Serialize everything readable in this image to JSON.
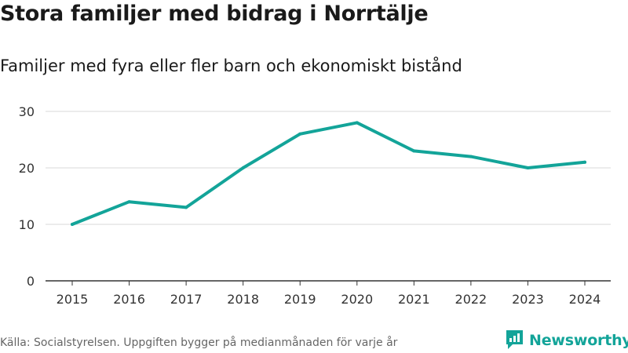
{
  "header": {
    "title": "Stora familjer med bidrag i Norrtälje",
    "subtitle": "Familjer med fyra eller fler barn och ekonomiskt bistånd"
  },
  "footer": {
    "source": "Källa: Socialstyrelsen. Uppgiften bygger på medianmånaden för varje år",
    "brand": "Newsworthy"
  },
  "colors": {
    "line": "#13a499",
    "grid": "#d9d9d9",
    "axis": "#333333",
    "brand": "#13a499"
  },
  "chart_data": {
    "type": "line",
    "title": "Stora familjer med bidrag i Norrtälje",
    "subtitle": "Familjer med fyra eller fler barn och ekonomiskt bistånd",
    "xlabel": "",
    "ylabel": "",
    "categories": [
      "2015",
      "2016",
      "2017",
      "2018",
      "2019",
      "2020",
      "2021",
      "2022",
      "2023",
      "2024"
    ],
    "series": [
      {
        "name": "Familjer",
        "values": [
          10,
          14,
          13,
          20,
          26,
          28,
          23,
          22,
          20,
          21
        ]
      }
    ],
    "ylim": [
      0,
      30
    ],
    "yticks": [
      0,
      10,
      20,
      30
    ],
    "grid": true,
    "legend": "none"
  }
}
